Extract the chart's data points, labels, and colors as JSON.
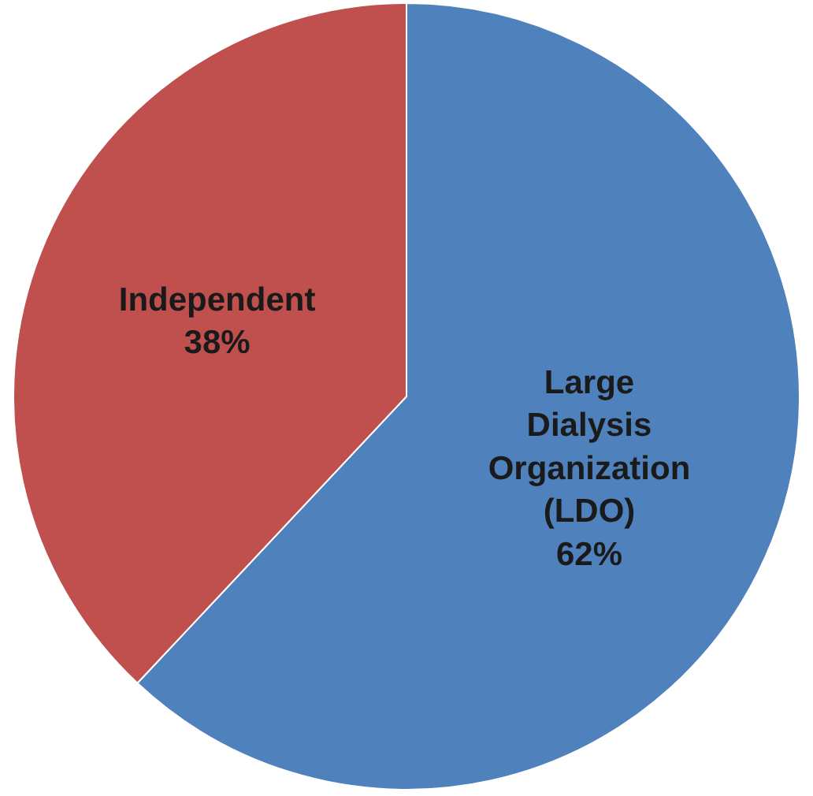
{
  "chart_data": {
    "type": "pie",
    "categories": [
      "Large Dialysis Organization (LDO)",
      "Independent"
    ],
    "values": [
      62,
      38
    ],
    "colors": [
      "#4f81bd",
      "#c0504d"
    ],
    "value_labels": [
      "62%",
      "38%"
    ],
    "legend": false
  }
}
